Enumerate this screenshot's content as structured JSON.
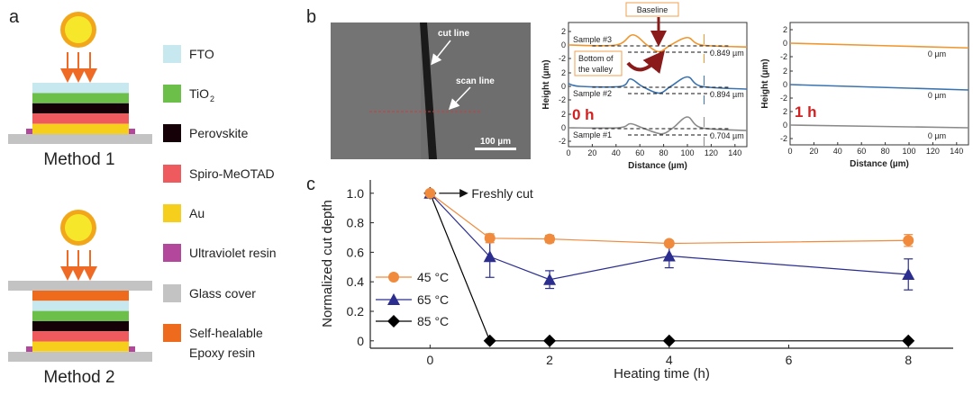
{
  "panel_labels": {
    "a": "a",
    "b": "b",
    "c": "c"
  },
  "panel_a": {
    "method1": "Method 1",
    "method2": "Method 2",
    "legend": [
      {
        "label": "FTO",
        "color": "#c8e8ef"
      },
      {
        "label": "TiO",
        "sub": "2",
        "color": "#6cc04a"
      },
      {
        "label": "Perovskite",
        "color": "#150008"
      },
      {
        "label": "Spiro-MeOTAD",
        "color": "#ef5a5e"
      },
      {
        "label": "Au",
        "color": "#f5cf1c"
      },
      {
        "label": "Ultraviolet resin",
        "color": "#b2479c"
      },
      {
        "label": "Glass cover",
        "color": "#c3c3c3"
      },
      {
        "label": "Self-healable",
        "label2": "Epoxy resin",
        "color": "#ee6a1c"
      }
    ],
    "sun_color": "#f7e72a",
    "ray_color": "#ee6a25"
  },
  "panel_b": {
    "sem": {
      "cut_line": "cut line",
      "scan_line": "scan line",
      "scale_bar": "100 µm"
    },
    "baseline_label": "Baseline",
    "valley_label_1": "Bottom of",
    "valley_label_2": "the valley"
  },
  "chart_data": [
    {
      "type": "line",
      "title": "0 h",
      "xlabel": "Distance (µm)",
      "ylabel": "Height (µm)",
      "xlim": [
        0,
        150
      ],
      "xticks": [
        0,
        20,
        40,
        60,
        80,
        100,
        120,
        140
      ],
      "ylim_each": [
        -2,
        2
      ],
      "yticks": [
        2,
        0,
        -2
      ],
      "series": [
        {
          "name": "Sample #3",
          "color": "#f0962e",
          "depth": "0.849 µm",
          "x": [
            0,
            40,
            54,
            66,
            76,
            86,
            100,
            112,
            150
          ],
          "y": [
            0,
            0,
            1.5,
            0,
            -1,
            0,
            1.1,
            0,
            -0.3
          ]
        },
        {
          "name": "Sample #2",
          "color": "#3a73b0",
          "depth": "0.894 µm",
          "x": [
            0,
            10,
            44,
            52,
            62,
            76,
            86,
            100,
            112,
            150
          ],
          "y": [
            0.4,
            0,
            0,
            1.1,
            0,
            -1,
            0,
            1.4,
            0,
            -0.4
          ]
        },
        {
          "name": "Sample #1",
          "color": "#8a8a8a",
          "depth": "0.704 µm",
          "x": [
            0,
            42,
            52,
            62,
            78,
            88,
            100,
            112,
            150
          ],
          "y": [
            0,
            0,
            0.6,
            0,
            -0.9,
            0,
            1.6,
            0,
            -0.4
          ]
        }
      ]
    },
    {
      "type": "line",
      "title": "1 h",
      "xlabel": "Distance (µm)",
      "ylabel": "Height (µm)",
      "xlim": [
        0,
        150
      ],
      "xticks": [
        0,
        20,
        40,
        60,
        80,
        100,
        120,
        140
      ],
      "ylim_each": [
        -2,
        2
      ],
      "yticks": [
        2,
        0,
        -2
      ],
      "series": [
        {
          "name": "Sample #3",
          "color": "#f0962e",
          "depth": "0 µm",
          "x": [
            0,
            150
          ],
          "y": [
            0,
            -0.7
          ]
        },
        {
          "name": "Sample #2",
          "color": "#3a73b0",
          "depth": "0 µm",
          "x": [
            0,
            150
          ],
          "y": [
            0,
            -0.8
          ]
        },
        {
          "name": "Sample #1",
          "color": "#8a8a8a",
          "depth": "0 µm",
          "x": [
            0,
            150
          ],
          "y": [
            0,
            -0.4
          ]
        }
      ]
    },
    {
      "type": "line",
      "title": "",
      "xlabel": "Heating time (h)",
      "ylabel": "Normalized cut depth",
      "xlim": [
        -1,
        8.75
      ],
      "ylim": [
        -0.05,
        1.09
      ],
      "xticks": [
        0,
        2,
        4,
        6,
        8
      ],
      "yticks": [
        0,
        0.2,
        0.4,
        0.6,
        0.8,
        1.0
      ],
      "ytick_labels": [
        "0",
        "0.2",
        "0.4",
        "0.6",
        "0.8",
        "1.0"
      ],
      "annotation": "Freshly cut",
      "legend_position": "left",
      "series": [
        {
          "name": "45 °C",
          "color": "#f08a3c",
          "marker": "circle",
          "x": [
            0,
            1,
            2,
            4,
            8
          ],
          "y": [
            1.0,
            0.695,
            0.69,
            0.66,
            0.68
          ],
          "err": [
            0,
            0.03,
            0.025,
            0.01,
            0.04
          ]
        },
        {
          "name": "65 °C",
          "color": "#2b2d8f",
          "marker": "triangle",
          "x": [
            0,
            1,
            2,
            4,
            8
          ],
          "y": [
            1.0,
            0.57,
            0.415,
            0.575,
            0.45
          ],
          "err": [
            0,
            0.14,
            0.06,
            0.08,
            0.105
          ]
        },
        {
          "name": "85 °C",
          "color": "#000000",
          "marker": "diamond",
          "x": [
            0,
            1,
            2,
            4,
            8
          ],
          "y": [
            1.0,
            0,
            0,
            0,
            0
          ],
          "err": [
            0,
            0,
            0,
            0,
            0
          ]
        }
      ]
    }
  ]
}
